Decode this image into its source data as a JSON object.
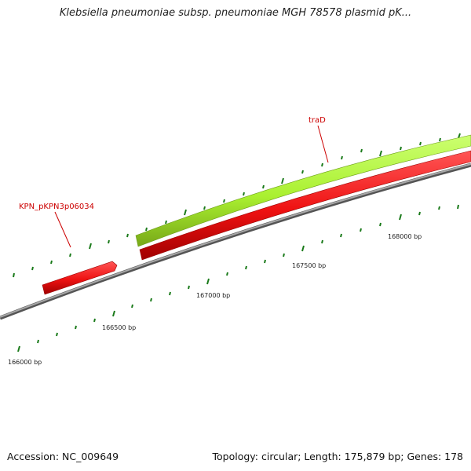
{
  "title": "Klebsiella pneumoniae subsp. pneumoniae MGH 78578 plasmid pK...",
  "footer": {
    "accession": "Accession: NC_009649",
    "summary": "Topology: circular; Length: 175,879 bp; Genes: 178"
  },
  "colors": {
    "backbone": "#888888",
    "reverse_gene": "#ee1111",
    "forward_gene": "#aaf030",
    "tick": "#1a7a1a",
    "label": "#cc0000"
  },
  "genes": [
    {
      "name": "KPN_pKPN3p06034",
      "strand": "reverse"
    },
    {
      "name": "traD",
      "strand": "forward"
    },
    {
      "name": "",
      "strand": "reverse"
    }
  ],
  "bp_labels": [
    "166000 bp",
    "166500 bp",
    "167000 bp",
    "167500 bp",
    "168000 bp"
  ]
}
